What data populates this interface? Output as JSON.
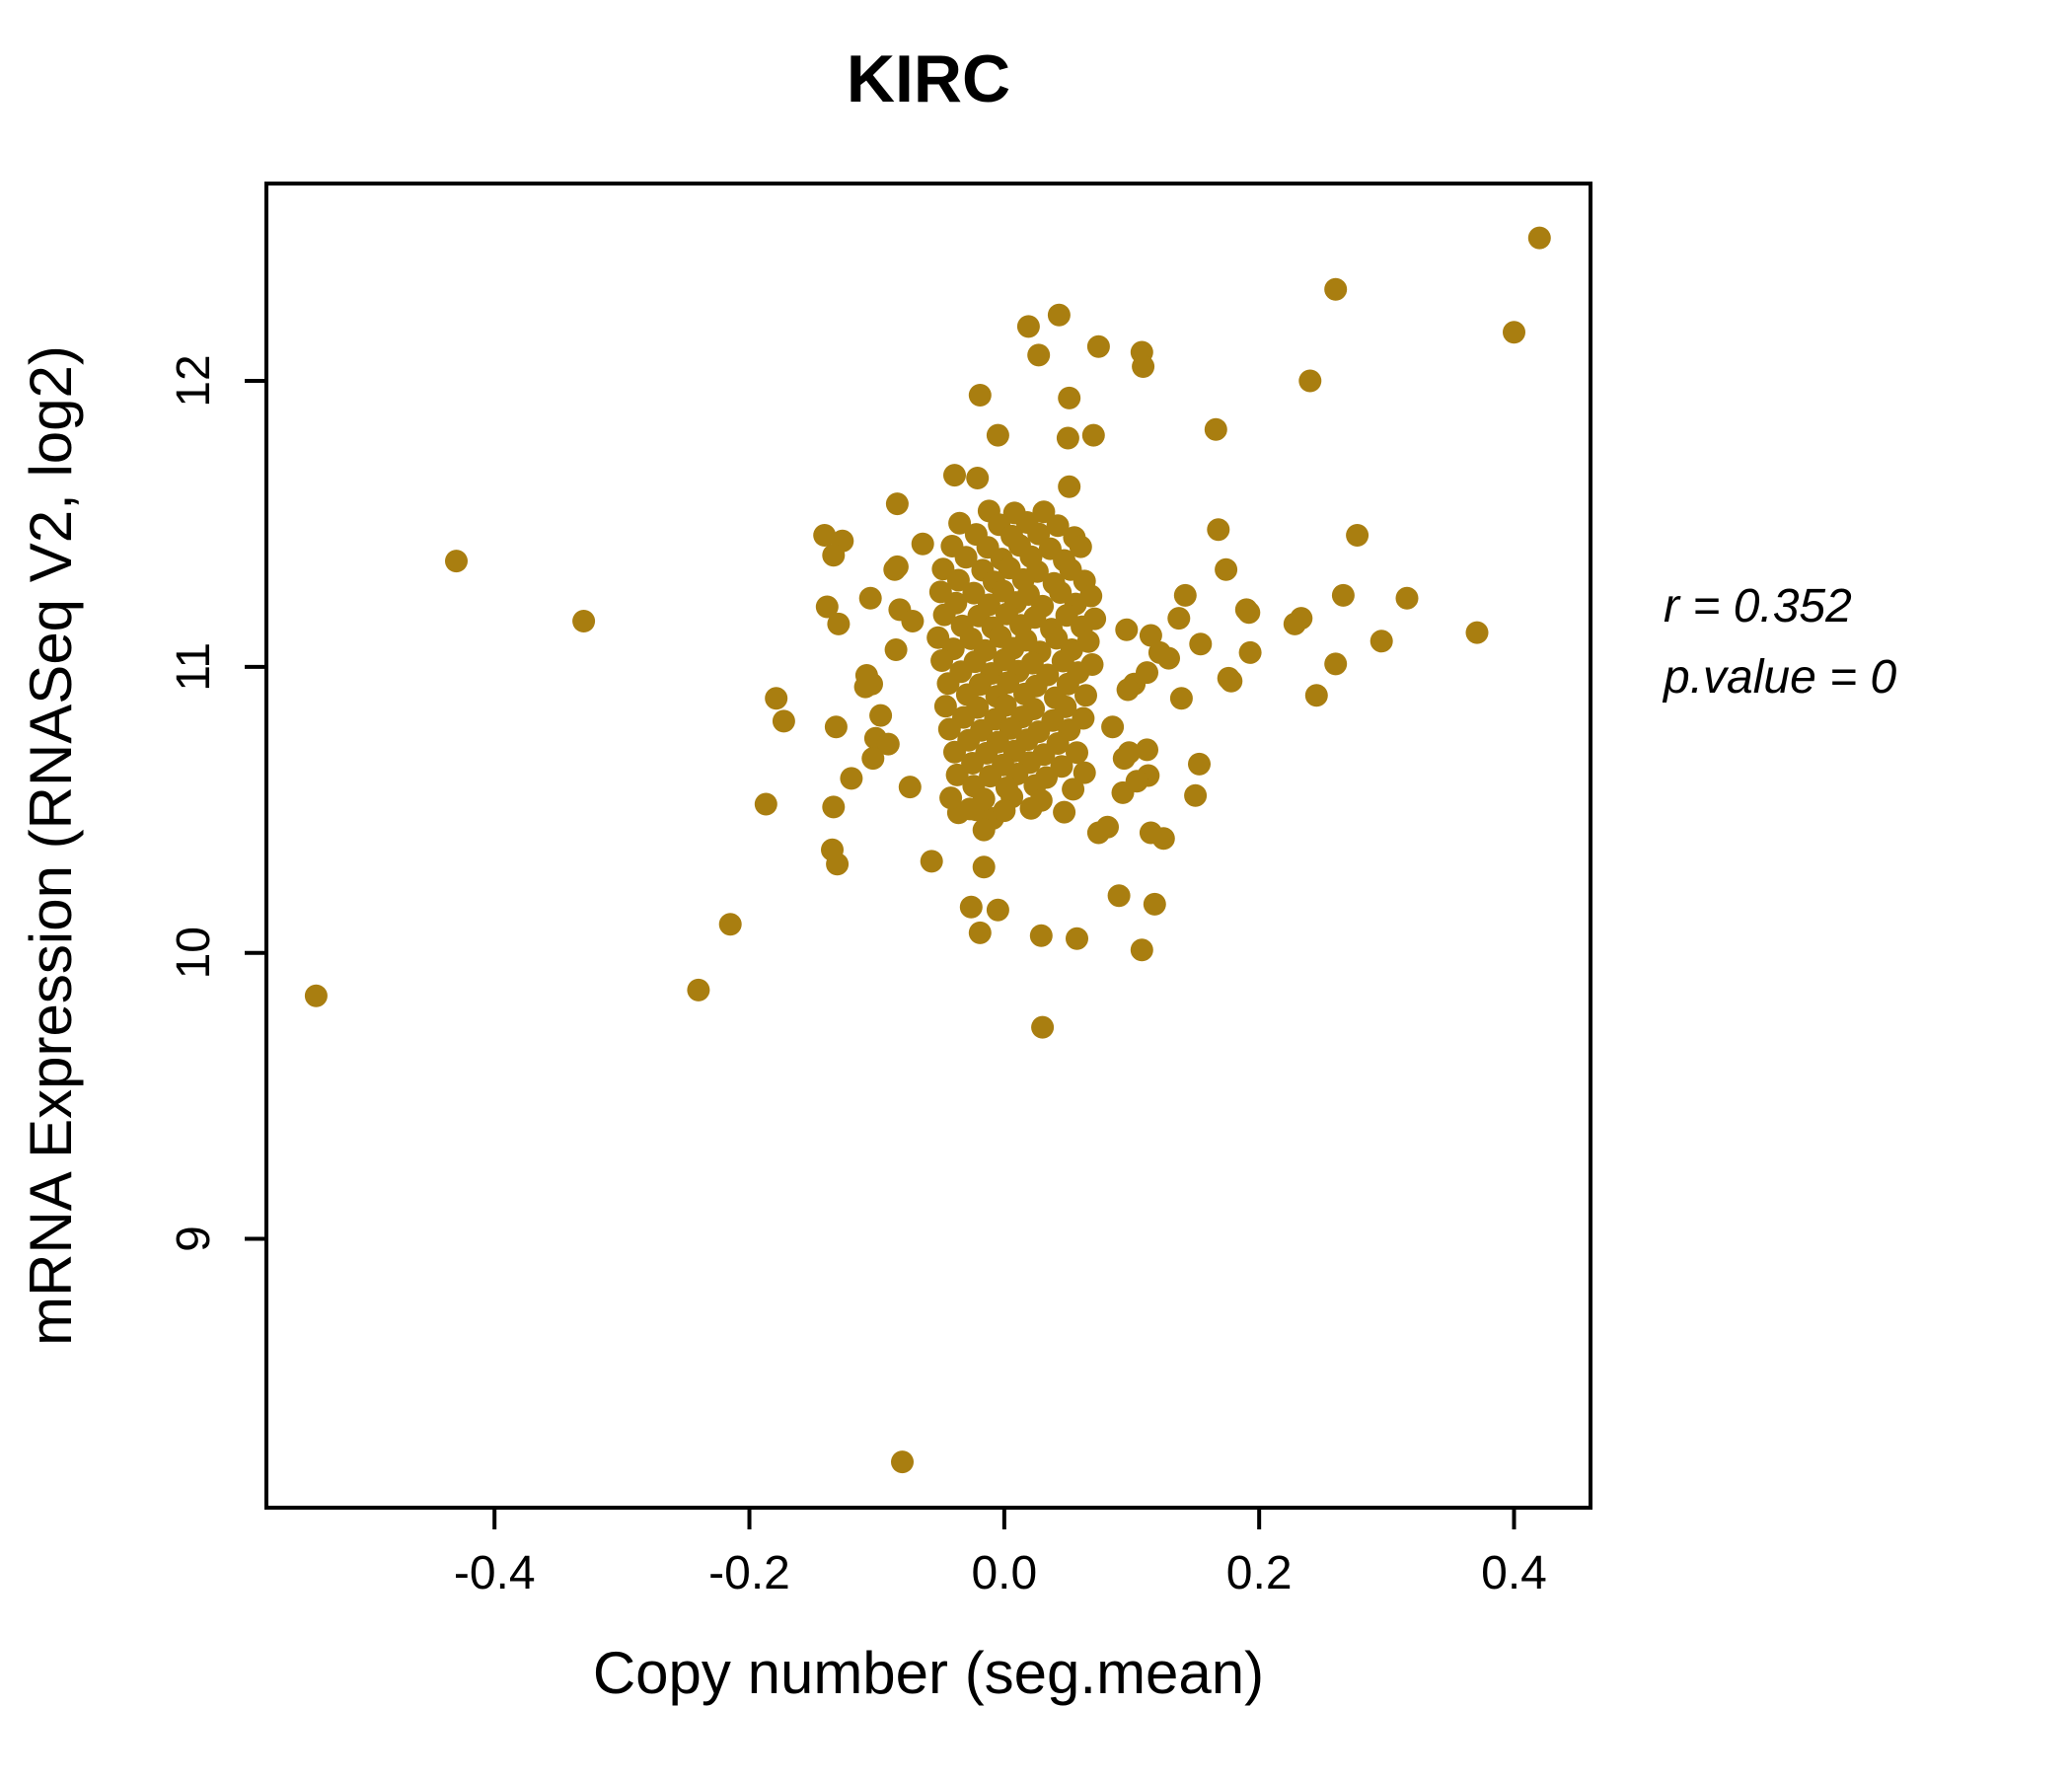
{
  "title": "KIRC",
  "colors": {
    "point": "#A97E10",
    "title": "#B8860B",
    "axis": "#000000",
    "background": "#FFFFFF"
  },
  "annotation": {
    "line1": "r = 0.352",
    "line2": "p.value = 0"
  },
  "chart_data": {
    "type": "scatter",
    "title": "KIRC",
    "xlabel": "Copy number (seg.mean)",
    "ylabel": "mRNA Expression (RNASeq V2, log2)",
    "xlim": [
      -0.579,
      0.46
    ],
    "ylim": [
      8.06,
      12.69
    ],
    "grid": false,
    "legend": "none",
    "xticks": [
      -0.4,
      -0.2,
      0.0,
      0.2,
      0.4
    ],
    "xtick_labels": [
      "-0.4",
      "-0.2",
      "0.0",
      "0.2",
      "0.4"
    ],
    "yticks": [
      9,
      10,
      11,
      12
    ],
    "ytick_labels": [
      "9",
      "10",
      "11",
      "12"
    ],
    "annotations": [
      "r = 0.352",
      "p.value = 0"
    ],
    "points": [
      [
        -0.54,
        9.85
      ],
      [
        -0.43,
        11.37
      ],
      [
        -0.33,
        11.16
      ],
      [
        -0.24,
        9.87
      ],
      [
        -0.215,
        10.1
      ],
      [
        -0.08,
        8.22
      ],
      [
        0.03,
        9.74
      ],
      [
        0.42,
        12.5
      ],
      [
        0.26,
        12.32
      ],
      [
        0.4,
        12.17
      ],
      [
        0.24,
        12.0
      ],
      [
        0.019,
        12.19
      ],
      [
        0.043,
        12.23
      ],
      [
        0.027,
        12.09
      ],
      [
        0.074,
        12.12
      ],
      [
        0.108,
        12.1
      ],
      [
        0.109,
        12.05
      ],
      [
        -0.019,
        11.95
      ],
      [
        0.051,
        11.94
      ],
      [
        -0.005,
        11.81
      ],
      [
        0.05,
        11.8
      ],
      [
        0.07,
        11.81
      ],
      [
        0.166,
        11.83
      ],
      [
        -0.021,
        11.66
      ],
      [
        0.051,
        11.63
      ],
      [
        -0.039,
        11.67
      ],
      [
        -0.084,
        11.57
      ],
      [
        0.168,
        11.48
      ],
      [
        0.277,
        11.46
      ],
      [
        0.316,
        11.24
      ],
      [
        0.296,
        11.09
      ],
      [
        0.371,
        11.12
      ],
      [
        0.233,
        11.17
      ],
      [
        0.266,
        11.25
      ],
      [
        0.26,
        11.01
      ],
      [
        0.245,
        10.9
      ],
      [
        0.178,
        10.95
      ],
      [
        0.192,
        11.19
      ],
      [
        0.228,
        11.15
      ],
      [
        0.174,
        11.34
      ],
      [
        0.19,
        11.2
      ],
      [
        0.142,
        11.25
      ],
      [
        0.137,
        11.17
      ],
      [
        0.154,
        11.08
      ],
      [
        0.129,
        11.03
      ],
      [
        0.139,
        10.89
      ],
      [
        0.15,
        10.55
      ],
      [
        0.153,
        10.66
      ],
      [
        0.125,
        10.4
      ],
      [
        0.113,
        10.62
      ],
      [
        0.093,
        10.56
      ],
      [
        0.118,
        10.17
      ],
      [
        0.09,
        10.2
      ],
      [
        0.108,
        10.01
      ],
      [
        -0.141,
        11.46
      ],
      [
        -0.127,
        11.44
      ],
      [
        -0.134,
        11.39
      ],
      [
        -0.064,
        11.43
      ],
      [
        -0.086,
        11.34
      ],
      [
        -0.105,
        11.24
      ],
      [
        -0.082,
        11.2
      ],
      [
        -0.072,
        11.16
      ],
      [
        -0.139,
        11.21
      ],
      [
        -0.13,
        11.15
      ],
      [
        -0.084,
        11.35
      ],
      [
        -0.085,
        11.06
      ],
      [
        -0.104,
        10.94
      ],
      [
        -0.108,
        10.97
      ],
      [
        -0.109,
        10.93
      ],
      [
        -0.179,
        10.89
      ],
      [
        -0.173,
        10.81
      ],
      [
        -0.132,
        10.79
      ],
      [
        -0.097,
        10.83
      ],
      [
        -0.101,
        10.75
      ],
      [
        -0.091,
        10.73
      ],
      [
        -0.103,
        10.68
      ],
      [
        -0.12,
        10.61
      ],
      [
        -0.074,
        10.58
      ],
      [
        -0.187,
        10.52
      ],
      [
        -0.134,
        10.51
      ],
      [
        -0.135,
        10.36
      ],
      [
        -0.131,
        10.31
      ],
      [
        -0.057,
        10.32
      ],
      [
        -0.016,
        10.3
      ],
      [
        -0.026,
        10.16
      ],
      [
        -0.005,
        10.15
      ],
      [
        -0.019,
        10.07
      ],
      [
        0.029,
        10.06
      ],
      [
        0.057,
        10.05
      ],
      [
        -0.036,
        10.49
      ],
      [
        -0.022,
        10.5
      ],
      [
        -0.009,
        10.47
      ],
      [
        -0.016,
        10.43
      ],
      [
        0.063,
        10.63
      ],
      [
        0.074,
        10.42
      ],
      [
        0.081,
        10.44
      ],
      [
        0.115,
        10.42
      ],
      [
        0.085,
        10.79
      ],
      [
        0.094,
        10.68
      ],
      [
        0.098,
        10.7
      ],
      [
        0.102,
        10.94
      ],
      [
        0.097,
        10.92
      ],
      [
        0.112,
        10.98
      ],
      [
        0.112,
        10.71
      ],
      [
        0.104,
        10.6
      ],
      [
        0.176,
        10.96
      ],
      [
        0.193,
        11.05
      ],
      [
        0.122,
        11.05
      ],
      [
        0.115,
        11.11
      ],
      [
        0.096,
        11.13
      ],
      [
        -0.012,
        11.545
      ],
      [
        0.008,
        11.538
      ],
      [
        0.031,
        11.542
      ],
      [
        -0.035,
        11.502
      ],
      [
        -0.004,
        11.497
      ],
      [
        0.018,
        11.505
      ],
      [
        0.042,
        11.494
      ],
      [
        -0.022,
        11.463
      ],
      [
        0.006,
        11.457
      ],
      [
        0.027,
        11.465
      ],
      [
        0.055,
        11.452
      ],
      [
        -0.041,
        11.422
      ],
      [
        -0.013,
        11.418
      ],
      [
        0.012,
        11.425
      ],
      [
        0.036,
        11.413
      ],
      [
        0.06,
        11.42
      ],
      [
        -0.03,
        11.383
      ],
      [
        -0.002,
        11.377
      ],
      [
        0.021,
        11.385
      ],
      [
        0.047,
        11.372
      ],
      [
        -0.048,
        11.342
      ],
      [
        -0.017,
        11.338
      ],
      [
        0.004,
        11.345
      ],
      [
        0.026,
        11.333
      ],
      [
        0.052,
        11.34
      ],
      [
        -0.036,
        11.303
      ],
      [
        -0.008,
        11.297
      ],
      [
        0.015,
        11.305
      ],
      [
        0.039,
        11.292
      ],
      [
        0.063,
        11.3
      ],
      [
        -0.05,
        11.262
      ],
      [
        -0.024,
        11.258
      ],
      [
        -0.001,
        11.265
      ],
      [
        0.019,
        11.253
      ],
      [
        0.044,
        11.26
      ],
      [
        0.068,
        11.248
      ],
      [
        -0.038,
        11.223
      ],
      [
        -0.012,
        11.217
      ],
      [
        0.009,
        11.225
      ],
      [
        0.03,
        11.212
      ],
      [
        0.056,
        11.22
      ],
      [
        -0.047,
        11.182
      ],
      [
        -0.02,
        11.178
      ],
      [
        0.002,
        11.185
      ],
      [
        0.024,
        11.173
      ],
      [
        0.049,
        11.18
      ],
      [
        0.071,
        11.168
      ],
      [
        -0.033,
        11.143
      ],
      [
        -0.009,
        11.137
      ],
      [
        0.013,
        11.145
      ],
      [
        0.037,
        11.132
      ],
      [
        0.061,
        11.14
      ],
      [
        -0.052,
        11.102
      ],
      [
        -0.026,
        11.098
      ],
      [
        -0.003,
        11.105
      ],
      [
        0.017,
        11.093
      ],
      [
        0.041,
        11.1
      ],
      [
        0.066,
        11.088
      ],
      [
        -0.04,
        11.063
      ],
      [
        -0.015,
        11.057
      ],
      [
        0.007,
        11.065
      ],
      [
        0.028,
        11.052
      ],
      [
        0.053,
        11.06
      ],
      [
        -0.049,
        11.022
      ],
      [
        -0.023,
        11.018
      ],
      [
        0.0,
        11.025
      ],
      [
        0.022,
        11.013
      ],
      [
        0.046,
        11.02
      ],
      [
        0.069,
        11.008
      ],
      [
        -0.034,
        10.983
      ],
      [
        -0.01,
        10.977
      ],
      [
        0.011,
        10.985
      ],
      [
        0.034,
        10.972
      ],
      [
        0.058,
        10.98
      ],
      [
        -0.044,
        10.942
      ],
      [
        -0.019,
        10.938
      ],
      [
        0.003,
        10.945
      ],
      [
        0.025,
        10.933
      ],
      [
        0.05,
        10.94
      ],
      [
        -0.029,
        10.903
      ],
      [
        -0.006,
        10.897
      ],
      [
        0.016,
        10.905
      ],
      [
        0.04,
        10.892
      ],
      [
        0.064,
        10.9
      ],
      [
        -0.046,
        10.862
      ],
      [
        -0.021,
        10.858
      ],
      [
        0.001,
        10.865
      ],
      [
        0.023,
        10.853
      ],
      [
        0.048,
        10.86
      ],
      [
        -0.032,
        10.823
      ],
      [
        -0.007,
        10.817
      ],
      [
        0.014,
        10.825
      ],
      [
        0.038,
        10.812
      ],
      [
        0.062,
        10.82
      ],
      [
        -0.043,
        10.782
      ],
      [
        -0.018,
        10.778
      ],
      [
        0.005,
        10.785
      ],
      [
        0.027,
        10.773
      ],
      [
        0.051,
        10.78
      ],
      [
        -0.028,
        10.743
      ],
      [
        -0.005,
        10.737
      ],
      [
        0.018,
        10.745
      ],
      [
        0.042,
        10.732
      ],
      [
        -0.039,
        10.702
      ],
      [
        -0.014,
        10.698
      ],
      [
        0.008,
        10.705
      ],
      [
        0.031,
        10.693
      ],
      [
        0.057,
        10.7
      ],
      [
        -0.025,
        10.663
      ],
      [
        -0.001,
        10.657
      ],
      [
        0.02,
        10.665
      ],
      [
        0.045,
        10.652
      ],
      [
        -0.037,
        10.622
      ],
      [
        -0.011,
        10.618
      ],
      [
        0.01,
        10.625
      ],
      [
        0.033,
        10.613
      ],
      [
        -0.024,
        10.583
      ],
      [
        0.002,
        10.577
      ],
      [
        0.024,
        10.585
      ],
      [
        0.054,
        10.572
      ],
      [
        -0.042,
        10.542
      ],
      [
        -0.016,
        10.538
      ],
      [
        0.006,
        10.545
      ],
      [
        0.029,
        10.533
      ],
      [
        -0.027,
        10.503
      ],
      [
        0.0,
        10.497
      ],
      [
        0.021,
        10.505
      ],
      [
        0.047,
        10.492
      ]
    ]
  }
}
